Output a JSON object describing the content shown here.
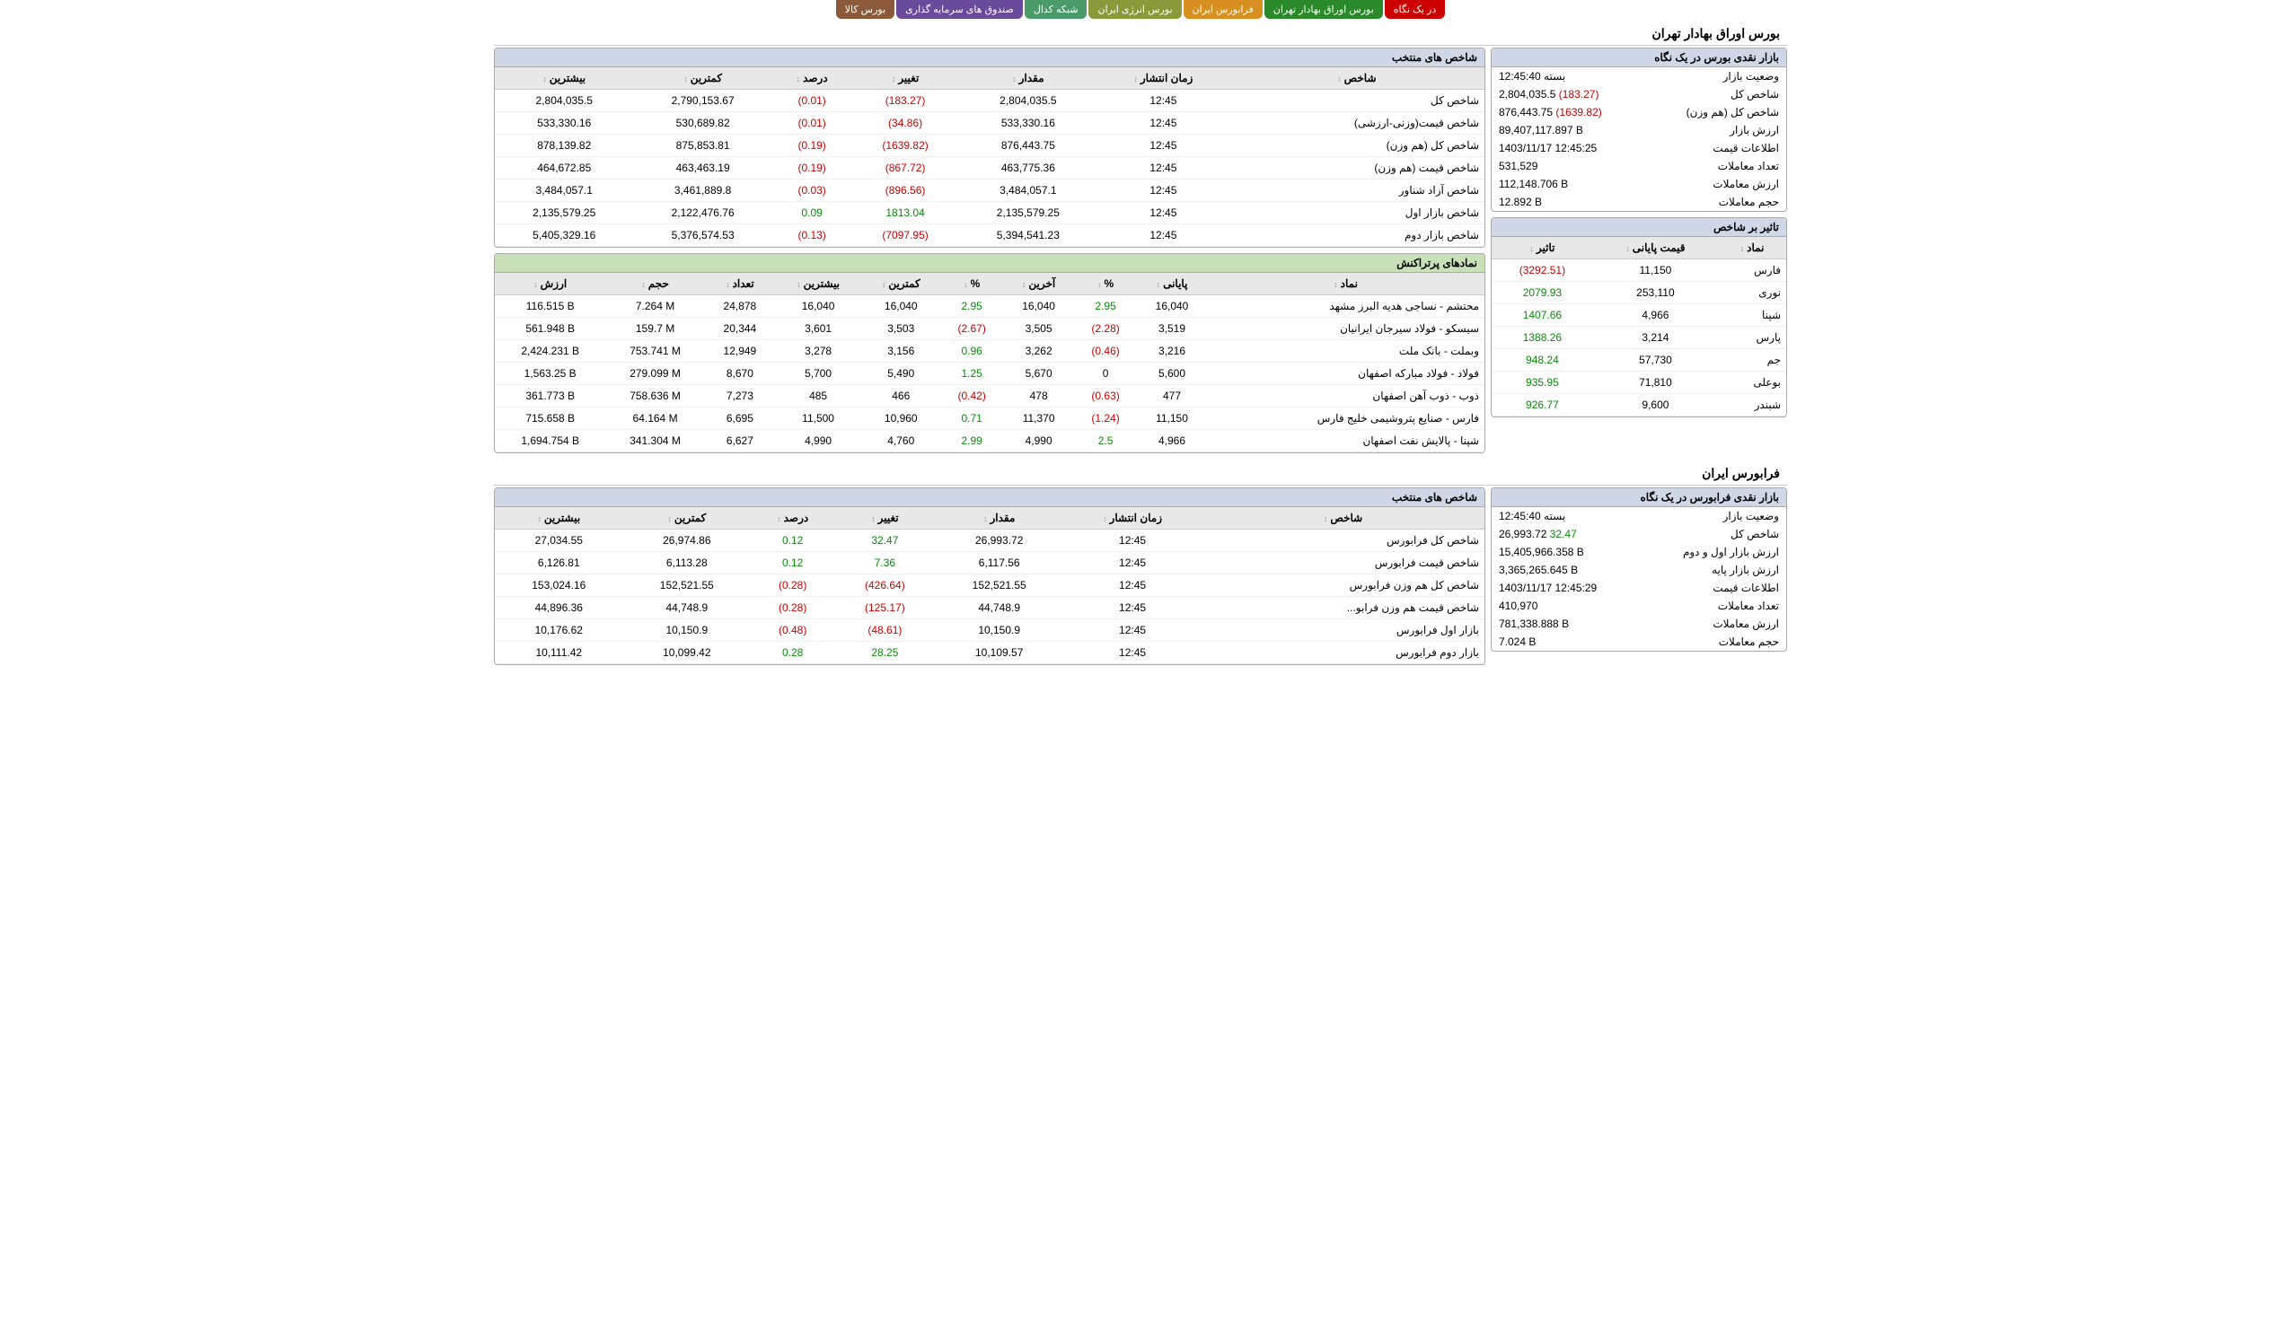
{
  "tabs": [
    {
      "label": "در یک نگاه",
      "cls": "tab-red"
    },
    {
      "label": "بورس اوراق بهادار تهران",
      "cls": "tab-green"
    },
    {
      "label": "فرابورس ایران",
      "cls": "tab-orange"
    },
    {
      "label": "بورس انرژی ایران",
      "cls": "tab-olive"
    },
    {
      "label": "شبکه کدال",
      "cls": "tab-teal"
    },
    {
      "label": "صندوق های سرمایه گذاری",
      "cls": "tab-purple"
    },
    {
      "label": "بورس کالا",
      "cls": "tab-brown"
    }
  ],
  "tse": {
    "title": "بورس اوراق بهادار تهران",
    "glance_title": "بازار نقدی بورس در یک نگاه",
    "glance": [
      {
        "label": "وضعیت بازار",
        "value": "بسته 12:45:40"
      },
      {
        "label": "شاخص کل",
        "value": "2,804,035.5",
        "delta": "(183.27)",
        "delta_cls": "neg"
      },
      {
        "label": "شاخص کل (هم وزن)",
        "value": "876,443.75",
        "delta": "(1639.82)",
        "delta_cls": "neg"
      },
      {
        "label": "ارزش بازار",
        "value": "89,407,117.897 B"
      },
      {
        "label": "اطلاعات قیمت",
        "value": "1403/11/17 12:45:25"
      },
      {
        "label": "تعداد معاملات",
        "value": "531,529"
      },
      {
        "label": "ارزش معاملات",
        "value": "112,148.706 B"
      },
      {
        "label": "حجم معاملات",
        "value": "12.892 B"
      }
    ],
    "indices_title": "شاخص های منتخب",
    "indices_headers": [
      "شاخص",
      "زمان انتشار",
      "مقدار",
      "تغییر",
      "درصد",
      "کمترین",
      "بیشترین"
    ],
    "indices": [
      [
        "شاخص کل",
        "12:45",
        "2,804,035.5",
        "(183.27)",
        "neg",
        "(0.01)",
        "neg",
        "2,790,153.67",
        "2,804,035.5"
      ],
      [
        "شاخص قیمت(وزنی-ارزشی)",
        "12:45",
        "533,330.16",
        "(34.86)",
        "neg",
        "(0.01)",
        "neg",
        "530,689.82",
        "533,330.16"
      ],
      [
        "شاخص کل (هم وزن)",
        "12:45",
        "876,443.75",
        "(1639.82)",
        "neg",
        "(0.19)",
        "neg",
        "875,853.81",
        "878,139.82"
      ],
      [
        "شاخص قیمت (هم وزن)",
        "12:45",
        "463,775.36",
        "(867.72)",
        "neg",
        "(0.19)",
        "neg",
        "463,463.19",
        "464,672.85"
      ],
      [
        "شاخص آزاد شناور",
        "12:45",
        "3,484,057.1",
        "(896.56)",
        "neg",
        "(0.03)",
        "neg",
        "3,461,889.8",
        "3,484,057.1"
      ],
      [
        "شاخص بازار اول",
        "12:45",
        "2,135,579.25",
        "1813.04",
        "pos",
        "0.09",
        "pos",
        "2,122,476.76",
        "2,135,579.25"
      ],
      [
        "شاخص بازار دوم",
        "12:45",
        "5,394,541.23",
        "(7097.95)",
        "neg",
        "(0.13)",
        "neg",
        "5,376,574.53",
        "5,405,329.16"
      ]
    ],
    "impact_title": "تاثیر بر شاخص",
    "impact_headers": [
      "نماد",
      "قیمت پایانی",
      "تاثیر"
    ],
    "impact": [
      [
        "فارس",
        "11,150",
        "(3292.51)",
        "neg"
      ],
      [
        "نوری",
        "253,110",
        "2079.93",
        "pos"
      ],
      [
        "شپنا",
        "4,966",
        "1407.66",
        "pos"
      ],
      [
        "پارس",
        "3,214",
        "1388.26",
        "pos"
      ],
      [
        "جم",
        "57,730",
        "948.24",
        "pos"
      ],
      [
        "بوعلی",
        "71,810",
        "935.95",
        "pos"
      ],
      [
        "شبندر",
        "9,600",
        "926.77",
        "pos"
      ]
    ],
    "top_title": "نمادهای پرتراکنش",
    "top_headers": [
      "نماد",
      "پایانی",
      "%",
      "آخرین",
      "%",
      "کمترین",
      "بیشترین",
      "تعداد",
      "حجم",
      "ارزش"
    ],
    "top": [
      [
        "محتشم - نساجی هدیه البرز مشهد",
        "16,040",
        "2.95",
        "pos",
        "16,040",
        "2.95",
        "pos",
        "16,040",
        "16,040",
        "24,878",
        "7.264 M",
        "116.515 B"
      ],
      [
        "سیسکو - فولاد سیرجان ایرانیان",
        "3,519",
        "(2.28)",
        "neg",
        "3,505",
        "(2.67)",
        "neg",
        "3,503",
        "3,601",
        "20,344",
        "159.7 M",
        "561.948 B"
      ],
      [
        "وبملت - بانک ملت",
        "3,216",
        "(0.46)",
        "neg",
        "3,262",
        "0.96",
        "pos",
        "3,156",
        "3,278",
        "12,949",
        "753.741 M",
        "2,424.231 B"
      ],
      [
        "فولاد - فولاد مبارکه اصفهان",
        "5,600",
        "0",
        "",
        "5,670",
        "1.25",
        "pos",
        "5,490",
        "5,700",
        "8,670",
        "279.099 M",
        "1,563.25 B"
      ],
      [
        "ذوب - ذوب آهن اصفهان",
        "477",
        "(0.63)",
        "neg",
        "478",
        "(0.42)",
        "neg",
        "466",
        "485",
        "7,273",
        "758.636 M",
        "361.773 B"
      ],
      [
        "فارس - صنایع پتروشیمی خلیج فارس",
        "11,150",
        "(1.24)",
        "neg",
        "11,370",
        "0.71",
        "pos",
        "10,960",
        "11,500",
        "6,695",
        "64.164 M",
        "715.658 B"
      ],
      [
        "شپنا - پالایش نفت اصفهان",
        "4,966",
        "2.5",
        "pos",
        "4,990",
        "2.99",
        "pos",
        "4,760",
        "4,990",
        "6,627",
        "341.304 M",
        "1,694.754 B"
      ]
    ]
  },
  "fara": {
    "title": "فرابورس ایران",
    "glance_title": "بازار نقدی فرابورس در یک نگاه",
    "glance": [
      {
        "label": "وضعیت بازار",
        "value": "بسته 12:45:40"
      },
      {
        "label": "شاخص کل",
        "value": "26,993.72",
        "delta": "32.47",
        "delta_cls": "pos"
      },
      {
        "label": "ارزش بازار اول و دوم",
        "value": "15,405,966.358 B"
      },
      {
        "label": "ارزش بازار پایه",
        "value": "3,365,265.645 B"
      },
      {
        "label": "اطلاعات قیمت",
        "value": "1403/11/17 12:45:29"
      },
      {
        "label": "تعداد معاملات",
        "value": "410,970"
      },
      {
        "label": "ارزش معاملات",
        "value": "781,338.888 B"
      },
      {
        "label": "حجم معاملات",
        "value": "7.024 B"
      }
    ],
    "indices_title": "شاخص های منتخب",
    "indices_headers": [
      "شاخص",
      "زمان انتشار",
      "مقدار",
      "تغییر",
      "درصد",
      "کمترین",
      "بیشترین"
    ],
    "indices": [
      [
        "شاخص کل فرابورس",
        "12:45",
        "26,993.72",
        "32.47",
        "pos",
        "0.12",
        "pos",
        "26,974.86",
        "27,034.55"
      ],
      [
        "شاخص قیمت فرابورس",
        "12:45",
        "6,117.56",
        "7.36",
        "pos",
        "0.12",
        "pos",
        "6,113.28",
        "6,126.81"
      ],
      [
        "شاخص کل هم وزن فرابورس",
        "12:45",
        "152,521.55",
        "(426.64)",
        "neg",
        "(0.28)",
        "neg",
        "152,521.55",
        "153,024.16"
      ],
      [
        "شاخص قیمت هم وزن فرابو...",
        "12:45",
        "44,748.9",
        "(125.17)",
        "neg",
        "(0.28)",
        "neg",
        "44,748.9",
        "44,896.36"
      ],
      [
        "بازار اول فرابورس",
        "12:45",
        "10,150.9",
        "(48.61)",
        "neg",
        "(0.48)",
        "neg",
        "10,150.9",
        "10,176.62"
      ],
      [
        "بازار دوم فرابورس",
        "12:45",
        "10,109.57",
        "28.25",
        "pos",
        "0.28",
        "pos",
        "10,099.42",
        "10,111.42"
      ]
    ]
  }
}
